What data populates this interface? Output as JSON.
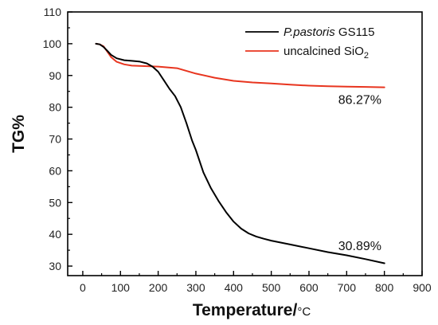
{
  "chart_data": {
    "type": "line",
    "xlabel": "Temperature/",
    "xlabel_unit": "°C",
    "ylabel": "TG%",
    "xlim": [
      -40,
      900
    ],
    "ylim": [
      27,
      110
    ],
    "x_ticks": [
      0,
      100,
      200,
      300,
      400,
      500,
      600,
      700,
      800,
      900
    ],
    "y_ticks": [
      30,
      40,
      50,
      60,
      70,
      80,
      90,
      100,
      110
    ],
    "legend_position": "top-right",
    "series": [
      {
        "name_italic": "P.pastoris",
        "name_rest": " GS115",
        "color": "#000000",
        "x": [
          35,
          45,
          55,
          65,
          75,
          90,
          110,
          130,
          150,
          170,
          185,
          200,
          215,
          230,
          245,
          260,
          275,
          290,
          300,
          320,
          340,
          360,
          380,
          400,
          420,
          440,
          460,
          480,
          500,
          550,
          600,
          650,
          700,
          750,
          800
        ],
        "y": [
          100,
          99.8,
          99,
          97.8,
          96.5,
          95.4,
          94.8,
          94.6,
          94.4,
          93.8,
          92.8,
          91.2,
          88.5,
          85.8,
          83.5,
          80.0,
          75.0,
          69.5,
          66.5,
          59.5,
          54.5,
          50.5,
          47.0,
          44.0,
          41.8,
          40.3,
          39.3,
          38.6,
          38.0,
          36.8,
          35.6,
          34.4,
          33.4,
          32.2,
          30.89
        ]
      },
      {
        "name": "uncalcined SiO",
        "name_sub": "2",
        "color": "#e8351f",
        "x": [
          35,
          45,
          55,
          65,
          75,
          90,
          110,
          130,
          150,
          200,
          250,
          300,
          350,
          400,
          450,
          500,
          550,
          600,
          650,
          700,
          750,
          800
        ],
        "y": [
          100,
          99.8,
          99.2,
          97.5,
          95.8,
          94.3,
          93.5,
          93.1,
          93.0,
          92.8,
          92.3,
          90.6,
          89.3,
          88.3,
          87.8,
          87.5,
          87.1,
          86.8,
          86.6,
          86.5,
          86.4,
          86.27
        ]
      }
    ],
    "annotations": [
      {
        "text": "86.27%",
        "x": 735,
        "y": 81
      },
      {
        "text": "30.89%",
        "x": 735,
        "y": 35
      }
    ]
  }
}
